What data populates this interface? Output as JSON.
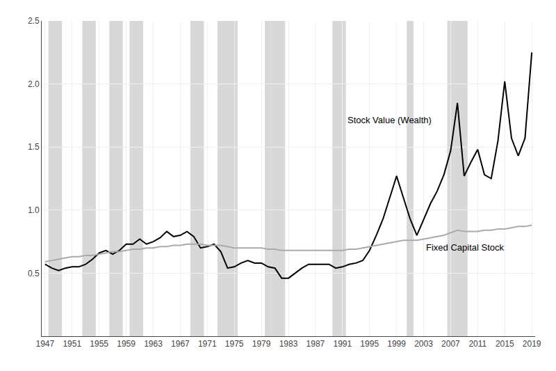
{
  "chart_data": {
    "type": "line",
    "x": [
      1947,
      1948,
      1949,
      1950,
      1951,
      1952,
      1953,
      1954,
      1955,
      1956,
      1957,
      1958,
      1959,
      1960,
      1961,
      1962,
      1963,
      1964,
      1965,
      1966,
      1967,
      1968,
      1969,
      1970,
      1971,
      1972,
      1973,
      1974,
      1975,
      1976,
      1977,
      1978,
      1979,
      1980,
      1981,
      1982,
      1983,
      1984,
      1985,
      1986,
      1987,
      1988,
      1989,
      1990,
      1991,
      1992,
      1993,
      1994,
      1995,
      1996,
      1997,
      1998,
      1999,
      2000,
      2001,
      2002,
      2003,
      2004,
      2005,
      2006,
      2007,
      2008,
      2009,
      2010,
      2011,
      2012,
      2013,
      2014,
      2015,
      2016,
      2017,
      2018,
      2019
    ],
    "series": [
      {
        "color": "#000000",
        "values": [
          0.57,
          0.54,
          0.52,
          0.54,
          0.55,
          0.55,
          0.57,
          0.61,
          0.66,
          0.68,
          0.65,
          0.68,
          0.73,
          0.73,
          0.77,
          0.73,
          0.75,
          0.78,
          0.83,
          0.79,
          0.8,
          0.83,
          0.79,
          0.7,
          0.71,
          0.73,
          0.67,
          0.54,
          0.55,
          0.58,
          0.6,
          0.58,
          0.58,
          0.55,
          0.54,
          0.46,
          0.46,
          0.5,
          0.54,
          0.57,
          0.57,
          0.57,
          0.57,
          0.54,
          0.55,
          0.57,
          0.58,
          0.6,
          0.68,
          0.8,
          0.93,
          1.1,
          1.27,
          1.1,
          0.93,
          0.8,
          0.93,
          1.05,
          1.15,
          1.28,
          1.47,
          1.85,
          1.27,
          1.38,
          1.48,
          1.28,
          1.25,
          1.55,
          2.02,
          1.57,
          1.43,
          1.57,
          2.25
        ]
      },
      {
        "color": "#aaaaaa",
        "values": [
          0.59,
          0.6,
          0.61,
          0.62,
          0.63,
          0.63,
          0.64,
          0.64,
          0.65,
          0.66,
          0.67,
          0.67,
          0.68,
          0.69,
          0.69,
          0.7,
          0.7,
          0.71,
          0.71,
          0.72,
          0.72,
          0.73,
          0.73,
          0.73,
          0.72,
          0.72,
          0.72,
          0.71,
          0.7,
          0.7,
          0.7,
          0.7,
          0.7,
          0.69,
          0.69,
          0.68,
          0.68,
          0.68,
          0.68,
          0.68,
          0.68,
          0.68,
          0.68,
          0.68,
          0.68,
          0.69,
          0.69,
          0.7,
          0.71,
          0.72,
          0.73,
          0.74,
          0.75,
          0.76,
          0.76,
          0.76,
          0.77,
          0.78,
          0.79,
          0.8,
          0.82,
          0.84,
          0.83,
          0.83,
          0.83,
          0.84,
          0.84,
          0.85,
          0.85,
          0.86,
          0.87,
          0.87,
          0.88
        ]
      }
    ],
    "annotations": [
      {
        "text": "Stock Value (Wealth)",
        "x": 1991.5,
        "y": 1.66
      },
      {
        "text": "Fixed Capital Stock",
        "x": 2003.2,
        "y": 0.65
      }
    ],
    "recession_bands": [
      [
        1947.5,
        1949.5
      ],
      [
        1952.5,
        1954.5
      ],
      [
        1956.5,
        1958.5
      ],
      [
        1959.5,
        1961.5
      ],
      [
        1968.5,
        1970.5
      ],
      [
        1972.5,
        1975.5
      ],
      [
        1979.5,
        1980.5
      ],
      [
        1980.5,
        1982.5
      ],
      [
        1989.5,
        1991.5
      ],
      [
        2000.5,
        2001.5
      ],
      [
        2006.5,
        2009.5
      ]
    ],
    "recession_color": "#d8d8d8",
    "xlim": [
      1946.5,
      2019.5
    ],
    "xticks": [
      1947,
      1951,
      1955,
      1959,
      1963,
      1967,
      1971,
      1975,
      1979,
      1983,
      1987,
      1991,
      1995,
      1999,
      2003,
      2007,
      2011,
      2015,
      2019
    ],
    "ylim": [
      0.0,
      2.5
    ],
    "yticks": [
      0.5,
      {
        "value": 1.0,
        "label": "1.0"
      },
      1.5,
      {
        "value": 2.0,
        "label": "2.0"
      },
      2.5
    ],
    "grid": true
  }
}
